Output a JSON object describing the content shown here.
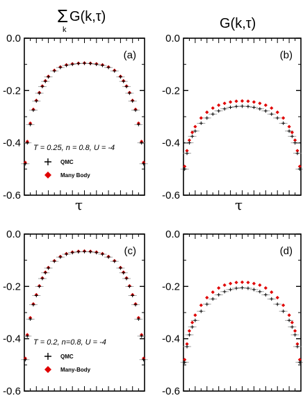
{
  "col_titles": {
    "left": "G(k,τ)",
    "right": "G(k,τ)",
    "left_sum": "Σ",
    "left_sub": "k"
  },
  "xlabel": "τ",
  "colors": {
    "qmc": "#000000",
    "many_body": "#e00000",
    "errorbar": "#888888"
  },
  "chart_data": [
    {
      "type": "scatter",
      "panel": "(a)",
      "ylim": [
        -0.6,
        0.0
      ],
      "yticks": [
        "0.0",
        "-0.2",
        "-0.4",
        "-0.6"
      ],
      "xlabel": "τ",
      "annotation": "T = 0.25, n = 0.8, U = -4",
      "legend": [
        "QMC",
        "Many Body"
      ],
      "series": [
        {
          "name": "QMC",
          "marker": "plus",
          "x": [
            0.008,
            0.025,
            0.05,
            0.075,
            0.1,
            0.125,
            0.15,
            0.175,
            0.2,
            0.25,
            0.3,
            0.35,
            0.4,
            0.45,
            0.5,
            0.55,
            0.6,
            0.65,
            0.7,
            0.75,
            0.8,
            0.825,
            0.85,
            0.875,
            0.9,
            0.925,
            0.95,
            0.975,
            0.992
          ],
          "y": [
            -0.48,
            -0.4,
            -0.33,
            -0.275,
            -0.24,
            -0.21,
            -0.185,
            -0.165,
            -0.148,
            -0.125,
            -0.112,
            -0.104,
            -0.1,
            -0.097,
            -0.096,
            -0.097,
            -0.1,
            -0.104,
            -0.112,
            -0.125,
            -0.148,
            -0.165,
            -0.185,
            -0.21,
            -0.24,
            -0.275,
            -0.33,
            -0.4,
            -0.48
          ]
        },
        {
          "name": "Many Body",
          "marker": "diamond",
          "x": [
            0.008,
            0.025,
            0.05,
            0.075,
            0.1,
            0.125,
            0.15,
            0.175,
            0.2,
            0.25,
            0.3,
            0.35,
            0.4,
            0.45,
            0.5,
            0.55,
            0.6,
            0.65,
            0.7,
            0.75,
            0.8,
            0.825,
            0.85,
            0.875,
            0.9,
            0.925,
            0.95,
            0.975,
            0.992
          ],
          "y": [
            -0.475,
            -0.395,
            -0.325,
            -0.272,
            -0.238,
            -0.208,
            -0.183,
            -0.163,
            -0.146,
            -0.123,
            -0.11,
            -0.102,
            -0.098,
            -0.096,
            -0.095,
            -0.096,
            -0.098,
            -0.102,
            -0.11,
            -0.123,
            -0.146,
            -0.163,
            -0.183,
            -0.208,
            -0.238,
            -0.272,
            -0.325,
            -0.395,
            -0.475
          ]
        }
      ]
    },
    {
      "type": "scatter",
      "panel": "(b)",
      "ylim": [
        -0.6,
        0.0
      ],
      "yticks": [
        "0.0",
        "-0.2",
        "-0.4",
        "-0.6"
      ],
      "xlabel": "τ",
      "series": [
        {
          "name": "QMC",
          "marker": "plus",
          "x": [
            0.01,
            0.03,
            0.05,
            0.075,
            0.1,
            0.15,
            0.2,
            0.25,
            0.3,
            0.35,
            0.4,
            0.45,
            0.5,
            0.55,
            0.6,
            0.65,
            0.7,
            0.75,
            0.8,
            0.85,
            0.9,
            0.925,
            0.95,
            0.97,
            0.99
          ],
          "y": [
            -0.5,
            -0.44,
            -0.4,
            -0.375,
            -0.355,
            -0.325,
            -0.305,
            -0.29,
            -0.278,
            -0.27,
            -0.264,
            -0.261,
            -0.26,
            -0.261,
            -0.264,
            -0.27,
            -0.278,
            -0.29,
            -0.305,
            -0.325,
            -0.355,
            -0.375,
            -0.4,
            -0.44,
            -0.5
          ]
        },
        {
          "name": "Many Body",
          "marker": "diamond",
          "x": [
            0.01,
            0.03,
            0.05,
            0.075,
            0.1,
            0.15,
            0.2,
            0.25,
            0.3,
            0.35,
            0.4,
            0.45,
            0.5,
            0.55,
            0.6,
            0.65,
            0.7,
            0.75,
            0.8,
            0.85,
            0.9,
            0.925,
            0.95,
            0.97,
            0.99
          ],
          "y": [
            -0.49,
            -0.43,
            -0.39,
            -0.36,
            -0.338,
            -0.305,
            -0.283,
            -0.267,
            -0.256,
            -0.249,
            -0.244,
            -0.241,
            -0.24,
            -0.241,
            -0.244,
            -0.249,
            -0.256,
            -0.267,
            -0.283,
            -0.305,
            -0.338,
            -0.36,
            -0.39,
            -0.43,
            -0.49
          ]
        }
      ]
    },
    {
      "type": "scatter",
      "panel": "(c)",
      "ylim": [
        -0.6,
        0.0
      ],
      "yticks": [
        "0.0",
        "-0.2",
        "-0.4",
        "-0.6"
      ],
      "annotation": "T = 0.2, n=0.8, U = -4",
      "legend": [
        "QMC",
        "Many-Body"
      ],
      "series": [
        {
          "name": "QMC",
          "marker": "plus",
          "x": [
            0.008,
            0.025,
            0.05,
            0.075,
            0.1,
            0.125,
            0.15,
            0.175,
            0.2,
            0.25,
            0.3,
            0.35,
            0.4,
            0.45,
            0.5,
            0.55,
            0.6,
            0.65,
            0.7,
            0.75,
            0.8,
            0.825,
            0.85,
            0.875,
            0.9,
            0.925,
            0.95,
            0.975,
            0.992
          ],
          "y": [
            -0.48,
            -0.39,
            -0.325,
            -0.27,
            -0.235,
            -0.2,
            -0.17,
            -0.148,
            -0.13,
            -0.104,
            -0.088,
            -0.077,
            -0.071,
            -0.068,
            -0.067,
            -0.068,
            -0.071,
            -0.077,
            -0.088,
            -0.104,
            -0.13,
            -0.148,
            -0.17,
            -0.2,
            -0.235,
            -0.27,
            -0.325,
            -0.39,
            -0.48
          ]
        },
        {
          "name": "Many-Body",
          "marker": "diamond",
          "x": [
            0.008,
            0.025,
            0.05,
            0.075,
            0.1,
            0.125,
            0.15,
            0.175,
            0.2,
            0.25,
            0.3,
            0.35,
            0.4,
            0.45,
            0.5,
            0.55,
            0.6,
            0.65,
            0.7,
            0.75,
            0.8,
            0.825,
            0.85,
            0.875,
            0.9,
            0.925,
            0.95,
            0.975,
            0.992
          ],
          "y": [
            -0.475,
            -0.385,
            -0.32,
            -0.267,
            -0.232,
            -0.198,
            -0.168,
            -0.146,
            -0.128,
            -0.102,
            -0.086,
            -0.075,
            -0.069,
            -0.066,
            -0.065,
            -0.066,
            -0.069,
            -0.075,
            -0.086,
            -0.102,
            -0.128,
            -0.146,
            -0.168,
            -0.198,
            -0.232,
            -0.267,
            -0.32,
            -0.385,
            -0.475
          ]
        }
      ]
    },
    {
      "type": "scatter",
      "panel": "(d)",
      "ylim": [
        -0.6,
        0.0
      ],
      "yticks": [
        "0.0",
        "-0.2",
        "-0.4",
        "-0.6"
      ],
      "series": [
        {
          "name": "QMC",
          "marker": "plus",
          "x": [
            0.01,
            0.03,
            0.05,
            0.075,
            0.1,
            0.15,
            0.2,
            0.25,
            0.3,
            0.35,
            0.4,
            0.45,
            0.5,
            0.55,
            0.6,
            0.65,
            0.7,
            0.75,
            0.8,
            0.85,
            0.9,
            0.925,
            0.95,
            0.97,
            0.99
          ],
          "y": [
            -0.49,
            -0.43,
            -0.385,
            -0.355,
            -0.33,
            -0.295,
            -0.268,
            -0.248,
            -0.232,
            -0.22,
            -0.212,
            -0.207,
            -0.205,
            -0.207,
            -0.212,
            -0.22,
            -0.232,
            -0.248,
            -0.268,
            -0.295,
            -0.33,
            -0.355,
            -0.385,
            -0.43,
            -0.49
          ]
        },
        {
          "name": "Many Body",
          "marker": "diamond",
          "x": [
            0.01,
            0.03,
            0.05,
            0.075,
            0.1,
            0.15,
            0.2,
            0.25,
            0.3,
            0.35,
            0.4,
            0.45,
            0.5,
            0.55,
            0.6,
            0.65,
            0.7,
            0.75,
            0.8,
            0.85,
            0.9,
            0.925,
            0.95,
            0.97,
            0.99
          ],
          "y": [
            -0.48,
            -0.42,
            -0.37,
            -0.338,
            -0.31,
            -0.272,
            -0.243,
            -0.222,
            -0.206,
            -0.195,
            -0.189,
            -0.185,
            -0.184,
            -0.185,
            -0.189,
            -0.195,
            -0.206,
            -0.222,
            -0.243,
            -0.272,
            -0.31,
            -0.338,
            -0.37,
            -0.42,
            -0.48
          ]
        }
      ]
    }
  ]
}
